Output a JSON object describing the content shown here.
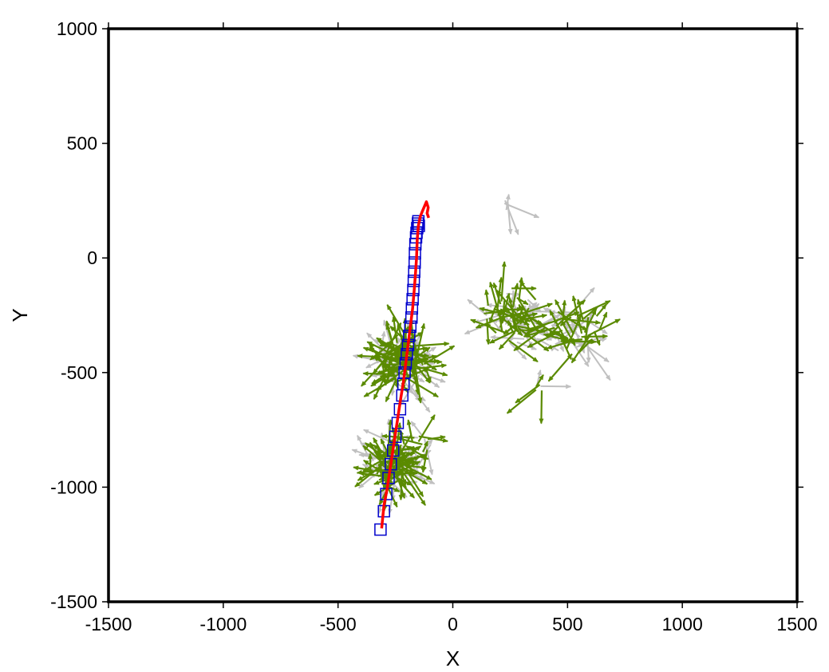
{
  "chart_data": {
    "type": "scatter",
    "title": "",
    "xlabel": "X",
    "ylabel": "Y",
    "xlim": [
      -1500,
      1500
    ],
    "ylim": [
      -1500,
      1000
    ],
    "xticks": [
      "-1500",
      "-1000",
      "-500",
      "0",
      "500",
      "1000",
      "1500"
    ],
    "yticks": [
      "-1500",
      "-1000",
      "-500",
      "0",
      "500",
      "1000"
    ],
    "grid": false,
    "legend": "none",
    "colors": {
      "track": "#ff0000",
      "stations": "#0000cc",
      "vectors_primary": "#5a8a00",
      "vectors_secondary": "#c0c0c0",
      "frame": "#000000"
    },
    "track_line": {
      "x": [
        -310,
        -300,
        -285,
        -270,
        -255,
        -240,
        -228,
        -215,
        -205,
        -195,
        -185,
        -175,
        -168,
        -162,
        -158,
        -155,
        -150,
        -142,
        -130,
        -115,
        -107,
        -112,
        -105
      ],
      "y": [
        -1180,
        -1080,
        -1000,
        -900,
        -800,
        -700,
        -620,
        -540,
        -460,
        -380,
        -300,
        -220,
        -140,
        -60,
        0,
        80,
        140,
        180,
        210,
        245,
        220,
        195,
        175
      ]
    },
    "stations": {
      "x": [
        -315,
        -300,
        -290,
        -280,
        -270,
        -260,
        -250,
        -240,
        -230,
        -220,
        -215,
        -210,
        -205,
        -200,
        -195,
        -190,
        -185,
        -180,
        -178,
        -175,
        -172,
        -170,
        -168,
        -166,
        -165,
        -163,
        -160,
        -158,
        -155,
        -152,
        -150,
        -148
      ],
      "y": [
        -1185,
        -1105,
        -1030,
        -960,
        -900,
        -840,
        -780,
        -720,
        -660,
        -600,
        -550,
        -500,
        -460,
        -420,
        -380,
        -340,
        -300,
        -260,
        -220,
        -180,
        -140,
        -100,
        -60,
        -20,
        20,
        60,
        90,
        110,
        130,
        150,
        160,
        140
      ]
    },
    "vector_clusters": [
      {
        "cx": -220,
        "cy": -450,
        "rx": 130,
        "ry": 130,
        "count": 140
      },
      {
        "cx": -270,
        "cy": -910,
        "rx": 120,
        "ry": 110,
        "count": 120
      },
      {
        "cx": -160,
        "cy": -820,
        "rx": 100,
        "ry": 70,
        "count": 20
      },
      {
        "cx": 260,
        "cy": -250,
        "rx": 130,
        "ry": 150,
        "count": 80
      },
      {
        "cx": 520,
        "cy": -310,
        "rx": 150,
        "ry": 140,
        "count": 70
      },
      {
        "cx": 360,
        "cy": -570,
        "rx": 40,
        "ry": 40,
        "count": 6
      },
      {
        "cx": 230,
        "cy": 220,
        "rx": 20,
        "ry": 60,
        "count": 4
      }
    ]
  }
}
